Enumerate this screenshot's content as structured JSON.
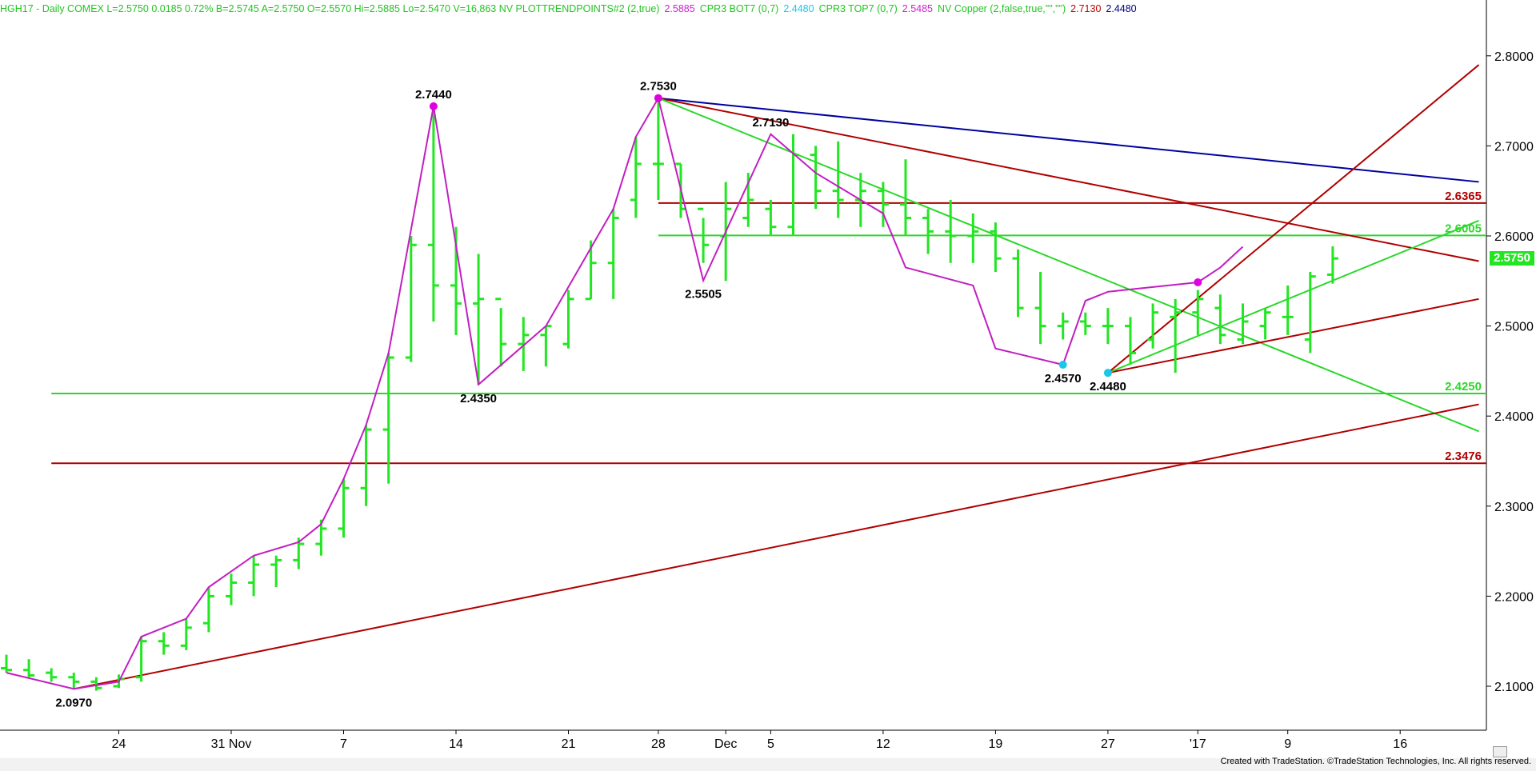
{
  "header": {
    "items": [
      {
        "text": "HGH17 - Daily  COMEX  L=2.5750  0.0185  0.72%  B=2.5745  A=2.5750  O=2.5570  Hi=2.5885  Lo=2.5470  V=16,863  NV  PLOTTRENDPOINTS#2 (2,true)",
        "color": "#22c422"
      },
      {
        "text": "2.5885",
        "color": "#d020d0"
      },
      {
        "text": "CPR3 BOT7 (0,7)",
        "color": "#22c422"
      },
      {
        "text": "2.4480",
        "color": "#19c8e6"
      },
      {
        "text": "CPR3 TOP7 (0,7)",
        "color": "#22c422"
      },
      {
        "text": "2.5485",
        "color": "#d020d0"
      },
      {
        "text": "NV Copper (2,false,true,\"\",\"\")",
        "color": "#22c422"
      },
      {
        "text": "2.7130",
        "color": "#c00000"
      },
      {
        "text": "2.4480",
        "color": "#000080"
      }
    ]
  },
  "footer": {
    "text": "Created with TradeStation. ©TradeStation Technologies, Inc. All rights reserved."
  },
  "chart_data": {
    "type": "line",
    "symbol": "HGH17",
    "ylim": [
      2.04,
      2.84
    ],
    "y_ticks": [
      "2.1000",
      "2.2000",
      "2.3000",
      "2.4000",
      "2.5000",
      "2.6000",
      "2.7000",
      "2.8000"
    ],
    "x_ticks": [
      {
        "label": "24",
        "i": 5
      },
      {
        "label": "31 Nov",
        "i": 10
      },
      {
        "label": "7",
        "i": 15
      },
      {
        "label": "14",
        "i": 20
      },
      {
        "label": "21",
        "i": 25
      },
      {
        "label": "28",
        "i": 29
      },
      {
        "label": "Dec",
        "i": 32
      },
      {
        "label": "5",
        "i": 34
      },
      {
        "label": "12",
        "i": 39
      },
      {
        "label": "19",
        "i": 44
      },
      {
        "label": "27",
        "i": 49
      },
      {
        "label": "'17",
        "i": 53
      },
      {
        "label": "9",
        "i": 57
      },
      {
        "label": "16",
        "i": 62
      }
    ],
    "bars": [
      [
        2.135,
        2.115,
        2.12,
        2.118
      ],
      [
        2.13,
        2.11,
        2.118,
        2.112
      ],
      [
        2.12,
        2.105,
        2.115,
        2.11
      ],
      [
        2.115,
        2.098,
        2.11,
        2.105
      ],
      [
        2.11,
        2.095,
        2.105,
        2.098
      ],
      [
        2.113,
        2.098,
        2.1,
        2.108
      ],
      [
        2.155,
        2.105,
        2.11,
        2.15
      ],
      [
        2.16,
        2.135,
        2.15,
        2.145
      ],
      [
        2.175,
        2.14,
        2.145,
        2.165
      ],
      [
        2.21,
        2.16,
        2.17,
        2.2
      ],
      [
        2.225,
        2.19,
        2.2,
        2.215
      ],
      [
        2.245,
        2.2,
        2.215,
        2.235
      ],
      [
        2.245,
        2.21,
        2.235,
        2.24
      ],
      [
        2.265,
        2.23,
        2.24,
        2.258
      ],
      [
        2.285,
        2.245,
        2.258,
        2.275
      ],
      [
        2.33,
        2.265,
        2.275,
        2.32
      ],
      [
        2.39,
        2.3,
        2.32,
        2.385
      ],
      [
        2.47,
        2.325,
        2.385,
        2.465
      ],
      [
        2.6,
        2.46,
        2.465,
        2.59
      ],
      [
        2.744,
        2.505,
        2.59,
        2.545
      ],
      [
        2.61,
        2.49,
        2.545,
        2.525
      ],
      [
        2.58,
        2.435,
        2.525,
        2.53
      ],
      [
        2.52,
        2.455,
        2.53,
        2.48
      ],
      [
        2.51,
        2.45,
        2.48,
        2.49
      ],
      [
        2.5,
        2.455,
        2.49,
        2.5
      ],
      [
        2.54,
        2.475,
        2.48,
        2.53
      ],
      [
        2.595,
        2.53,
        2.53,
        2.57
      ],
      [
        2.63,
        2.53,
        2.57,
        2.62
      ],
      [
        2.71,
        2.62,
        2.64,
        2.68
      ],
      [
        2.753,
        2.64,
        2.68,
        2.68
      ],
      [
        2.68,
        2.62,
        2.68,
        2.63
      ],
      [
        2.62,
        2.57,
        2.63,
        2.59
      ],
      [
        2.66,
        2.55,
        2.6,
        2.63
      ],
      [
        2.67,
        2.61,
        2.62,
        2.64
      ],
      [
        2.64,
        2.6,
        2.63,
        2.61
      ],
      [
        2.713,
        2.6,
        2.61,
        2.69
      ],
      [
        2.7,
        2.63,
        2.69,
        2.65
      ],
      [
        2.705,
        2.62,
        2.65,
        2.64
      ],
      [
        2.67,
        2.61,
        2.64,
        2.65
      ],
      [
        2.66,
        2.61,
        2.65,
        2.635
      ],
      [
        2.685,
        2.6,
        2.635,
        2.62
      ],
      [
        2.63,
        2.58,
        2.62,
        2.605
      ],
      [
        2.64,
        2.57,
        2.605,
        2.6
      ],
      [
        2.625,
        2.57,
        2.6,
        2.605
      ],
      [
        2.615,
        2.56,
        2.605,
        2.575
      ],
      [
        2.585,
        2.51,
        2.575,
        2.52
      ],
      [
        2.56,
        2.48,
        2.52,
        2.5
      ],
      [
        2.515,
        2.485,
        2.5,
        2.505
      ],
      [
        2.515,
        2.49,
        2.505,
        2.5
      ],
      [
        2.52,
        2.48,
        2.5,
        2.5
      ],
      [
        2.51,
        2.457,
        2.5,
        2.47
      ],
      [
        2.525,
        2.475,
        2.485,
        2.515
      ],
      [
        2.53,
        2.448,
        2.51,
        2.515
      ],
      [
        2.54,
        2.49,
        2.515,
        2.53
      ],
      [
        2.535,
        2.48,
        2.52,
        2.49
      ],
      [
        2.525,
        2.48,
        2.485,
        2.505
      ],
      [
        2.52,
        2.485,
        2.5,
        2.515
      ],
      [
        2.545,
        2.49,
        2.51,
        2.51
      ],
      [
        2.56,
        2.47,
        2.485,
        2.555
      ],
      [
        2.5885,
        2.547,
        2.557,
        2.575
      ]
    ],
    "bars_start_day": 0,
    "trend_points": [
      {
        "i": 3,
        "v": 2.097,
        "label": "2.0970"
      },
      {
        "i": 19,
        "v": 2.744,
        "label": "2.7440",
        "dot": "#e000e0"
      },
      {
        "i": 21,
        "v": 2.435,
        "label": "2.4350"
      },
      {
        "i": 29,
        "v": 2.753,
        "label": "2.7530",
        "dot": "#e000e0"
      },
      {
        "i": 31,
        "v": 2.5505,
        "label": "2.5505"
      },
      {
        "i": 34,
        "v": 2.713,
        "label": "2.7130"
      },
      {
        "i": 47,
        "v": 2.457,
        "label": "2.4570",
        "dot": "#19c8e6"
      },
      {
        "i": 49,
        "v": 2.448,
        "label": "2.4480",
        "dot": "#19c8e6"
      }
    ],
    "zigzag": [
      [
        0,
        2.115
      ],
      [
        3,
        2.097
      ],
      [
        5,
        2.105
      ],
      [
        6,
        2.155
      ],
      [
        8,
        2.175
      ],
      [
        9,
        2.21
      ],
      [
        11,
        2.245
      ],
      [
        13,
        2.26
      ],
      [
        14,
        2.28
      ],
      [
        15,
        2.33
      ],
      [
        16,
        2.39
      ],
      [
        17,
        2.47
      ],
      [
        19,
        2.744
      ],
      [
        21,
        2.435
      ],
      [
        24,
        2.5
      ],
      [
        27,
        2.63
      ],
      [
        28,
        2.71
      ],
      [
        29,
        2.753
      ],
      [
        31,
        2.5505
      ],
      [
        34,
        2.713
      ],
      [
        36,
        2.67
      ],
      [
        39,
        2.625
      ],
      [
        40,
        2.565
      ],
      [
        43,
        2.545
      ],
      [
        44,
        2.475
      ],
      [
        47,
        2.457
      ],
      [
        48,
        2.528
      ],
      [
        49,
        2.538
      ],
      [
        53,
        2.5485
      ],
      [
        54,
        2.565
      ],
      [
        55,
        2.588
      ]
    ],
    "levels": [
      {
        "value": 2.6365,
        "color": "#b00000",
        "label": "2.6365",
        "from_i": 29
      },
      {
        "value": 2.6005,
        "color": "#2ad82a",
        "label": "2.6005",
        "from_i": 29
      },
      {
        "value": 2.425,
        "color": "#2ad82a",
        "label": "2.4250",
        "from_i": 2
      },
      {
        "value": 2.3476,
        "color": "#b00000",
        "label": "2.3476",
        "from_i": 2
      }
    ],
    "trendlines": [
      {
        "from": [
          29,
          2.753
        ],
        "to": [
          65.5,
          2.66
        ],
        "color": "#0000a0"
      },
      {
        "from": [
          29,
          2.753
        ],
        "to": [
          65.5,
          2.572
        ],
        "color": "#b00000"
      },
      {
        "from": [
          29,
          2.753
        ],
        "to": [
          65.5,
          2.383
        ],
        "color": "#2ad82a"
      },
      {
        "from": [
          3,
          2.097
        ],
        "to": [
          65.5,
          2.413
        ],
        "color": "#b00000"
      },
      {
        "from": [
          49,
          2.448
        ],
        "to": [
          65.5,
          2.53
        ],
        "color": "#b00000"
      },
      {
        "from": [
          49,
          2.448
        ],
        "to": [
          65.5,
          2.79
        ],
        "color": "#b00000"
      },
      {
        "from": [
          49,
          2.448
        ],
        "to": [
          65.5,
          2.617
        ],
        "color": "#2ad82a"
      }
    ],
    "last_price": {
      "value": 2.575,
      "label": "2.5750"
    },
    "colors": {
      "bars": "#22e622",
      "zigzag": "#c21ec2",
      "axis": "#000000"
    }
  }
}
